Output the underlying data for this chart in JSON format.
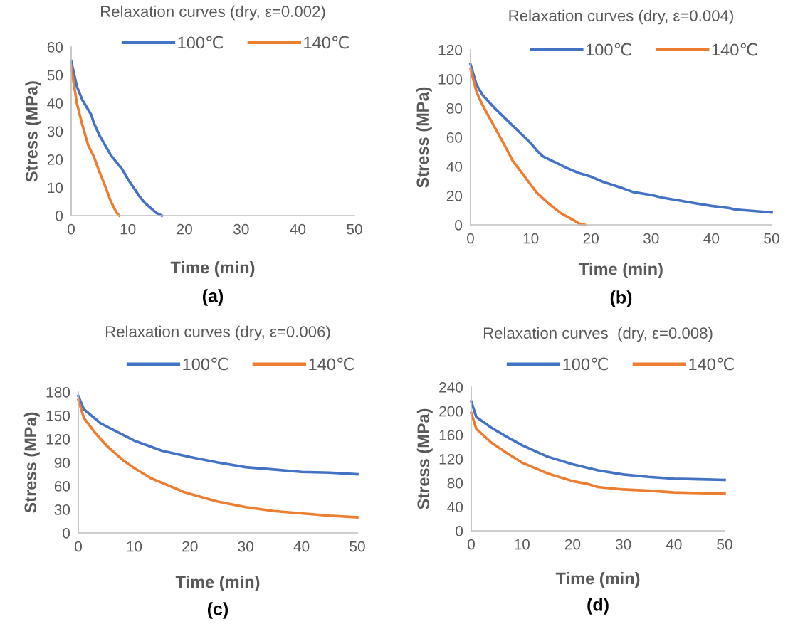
{
  "chart_data": [
    {
      "type": "line",
      "title": "Relaxation curves (dry, ε=0.002)",
      "xlabel": "Time (min)",
      "ylabel": "Stress (MPa)",
      "xlim": [
        0,
        50
      ],
      "xticks": [
        0,
        10,
        20,
        30,
        40,
        50
      ],
      "ylim": [
        0,
        60
      ],
      "yticks": [
        0,
        10,
        20,
        30,
        40,
        50,
        60
      ],
      "grid": false,
      "legend": "top",
      "marker": "none",
      "line_style": "solid",
      "annotations": [
        "(a)"
      ],
      "series": [
        {
          "name": "100℃",
          "color": "#4472c4",
          "x": [
            0,
            1,
            2,
            3.5,
            4,
            5,
            7,
            9,
            10,
            11,
            12,
            13,
            15,
            16
          ],
          "values": [
            55,
            46,
            41,
            36,
            33,
            28.5,
            21.5,
            16.5,
            13,
            10,
            7,
            4.5,
            1,
            0
          ]
        },
        {
          "name": "140℃",
          "color": "#ed7d31",
          "x": [
            0,
            1,
            2,
            3,
            4,
            5,
            6,
            7,
            8,
            8.5
          ],
          "values": [
            53,
            40,
            32,
            25,
            21,
            15.5,
            10.5,
            5,
            1,
            0
          ]
        }
      ]
    },
    {
      "type": "line",
      "title": "Relaxation curves (dry, ε=0.004)",
      "xlabel": "Time (min)",
      "ylabel": "Stress (MPa)",
      "xlim": [
        0,
        50
      ],
      "xticks": [
        0,
        10,
        20,
        30,
        40,
        50
      ],
      "ylim": [
        0,
        120
      ],
      "yticks": [
        0,
        20,
        40,
        60,
        80,
        100,
        120
      ],
      "grid": false,
      "legend": "top",
      "marker": "none",
      "line_style": "solid",
      "annotations": [
        "(b)"
      ],
      "series": [
        {
          "name": "100℃",
          "color": "#4472c4",
          "x": [
            0,
            1,
            2,
            4,
            6,
            8,
            10,
            11,
            12,
            14,
            16,
            18,
            20,
            22,
            25,
            27,
            30,
            32,
            35,
            37,
            40,
            43,
            44,
            47,
            50
          ],
          "values": [
            110,
            96,
            89,
            80,
            72,
            64,
            56,
            51,
            47,
            43,
            39,
            35.5,
            33,
            29.5,
            25.5,
            22.5,
            20.5,
            18.5,
            16.5,
            15,
            13,
            11.5,
            10.5,
            9.5,
            8.5
          ]
        },
        {
          "name": "140℃",
          "color": "#ed7d31",
          "x": [
            0,
            1,
            2,
            4,
            6,
            7,
            9,
            11,
            13,
            15,
            17,
            18,
            19
          ],
          "values": [
            107,
            91,
            82,
            67,
            52,
            44,
            33,
            22,
            14.5,
            8,
            3.5,
            1,
            0
          ]
        }
      ]
    },
    {
      "type": "line",
      "title": "Relaxation curves (dry, ε=0.006)",
      "xlabel": "Time (min)",
      "ylabel": "Stress (MPa)",
      "xlim": [
        0,
        50
      ],
      "xticks": [
        0,
        10,
        20,
        30,
        40,
        50
      ],
      "ylim": [
        0,
        180
      ],
      "yticks": [
        0,
        30,
        60,
        90,
        120,
        150,
        180
      ],
      "grid": false,
      "legend": "top",
      "marker": "none",
      "line_style": "solid",
      "annotations": [
        "(c)"
      ],
      "series": [
        {
          "name": "100℃",
          "color": "#4472c4",
          "x": [
            0,
            1,
            4,
            7,
            10,
            15,
            20,
            25,
            30,
            35,
            40,
            45,
            50
          ],
          "values": [
            175,
            158,
            140,
            129,
            118,
            105,
            97,
            90,
            84,
            81,
            78,
            77,
            75
          ]
        },
        {
          "name": "140℃",
          "color": "#ed7d31",
          "x": [
            0,
            1,
            3,
            5,
            8,
            10,
            13,
            16,
            19,
            22,
            25,
            30,
            35,
            40,
            45,
            50
          ],
          "values": [
            170,
            147,
            128,
            112,
            93,
            83,
            70,
            61,
            52,
            46,
            40,
            33,
            28,
            25,
            22,
            20
          ]
        }
      ]
    },
    {
      "type": "line",
      "title": "Relaxation curves  (dry, ε=0.008)",
      "xlabel": "Time (min)",
      "ylabel": "Stress (MPa)",
      "xlim": [
        0,
        50
      ],
      "xticks": [
        0,
        10,
        20,
        30,
        40,
        50
      ],
      "ylim": [
        0,
        240
      ],
      "yticks": [
        0,
        40,
        80,
        120,
        160,
        200,
        240
      ],
      "grid": false,
      "legend": "top",
      "marker": "none",
      "line_style": "solid",
      "annotations": [
        "(d)"
      ],
      "series": [
        {
          "name": "100℃",
          "color": "#4472c4",
          "x": [
            0,
            1,
            4,
            7,
            10,
            15,
            20,
            25,
            30,
            35,
            40,
            45,
            50
          ],
          "values": [
            216,
            190,
            172,
            157,
            143,
            124,
            111,
            101,
            94,
            90,
            87,
            86,
            85
          ]
        },
        {
          "name": "140℃",
          "color": "#ed7d31",
          "x": [
            0,
            1,
            4,
            7,
            10,
            15,
            20,
            23,
            25,
            30,
            35,
            40,
            45,
            50
          ],
          "values": [
            197,
            170,
            147,
            130,
            114,
            96,
            83,
            78,
            73,
            69,
            67,
            64,
            63,
            62
          ]
        }
      ]
    }
  ]
}
